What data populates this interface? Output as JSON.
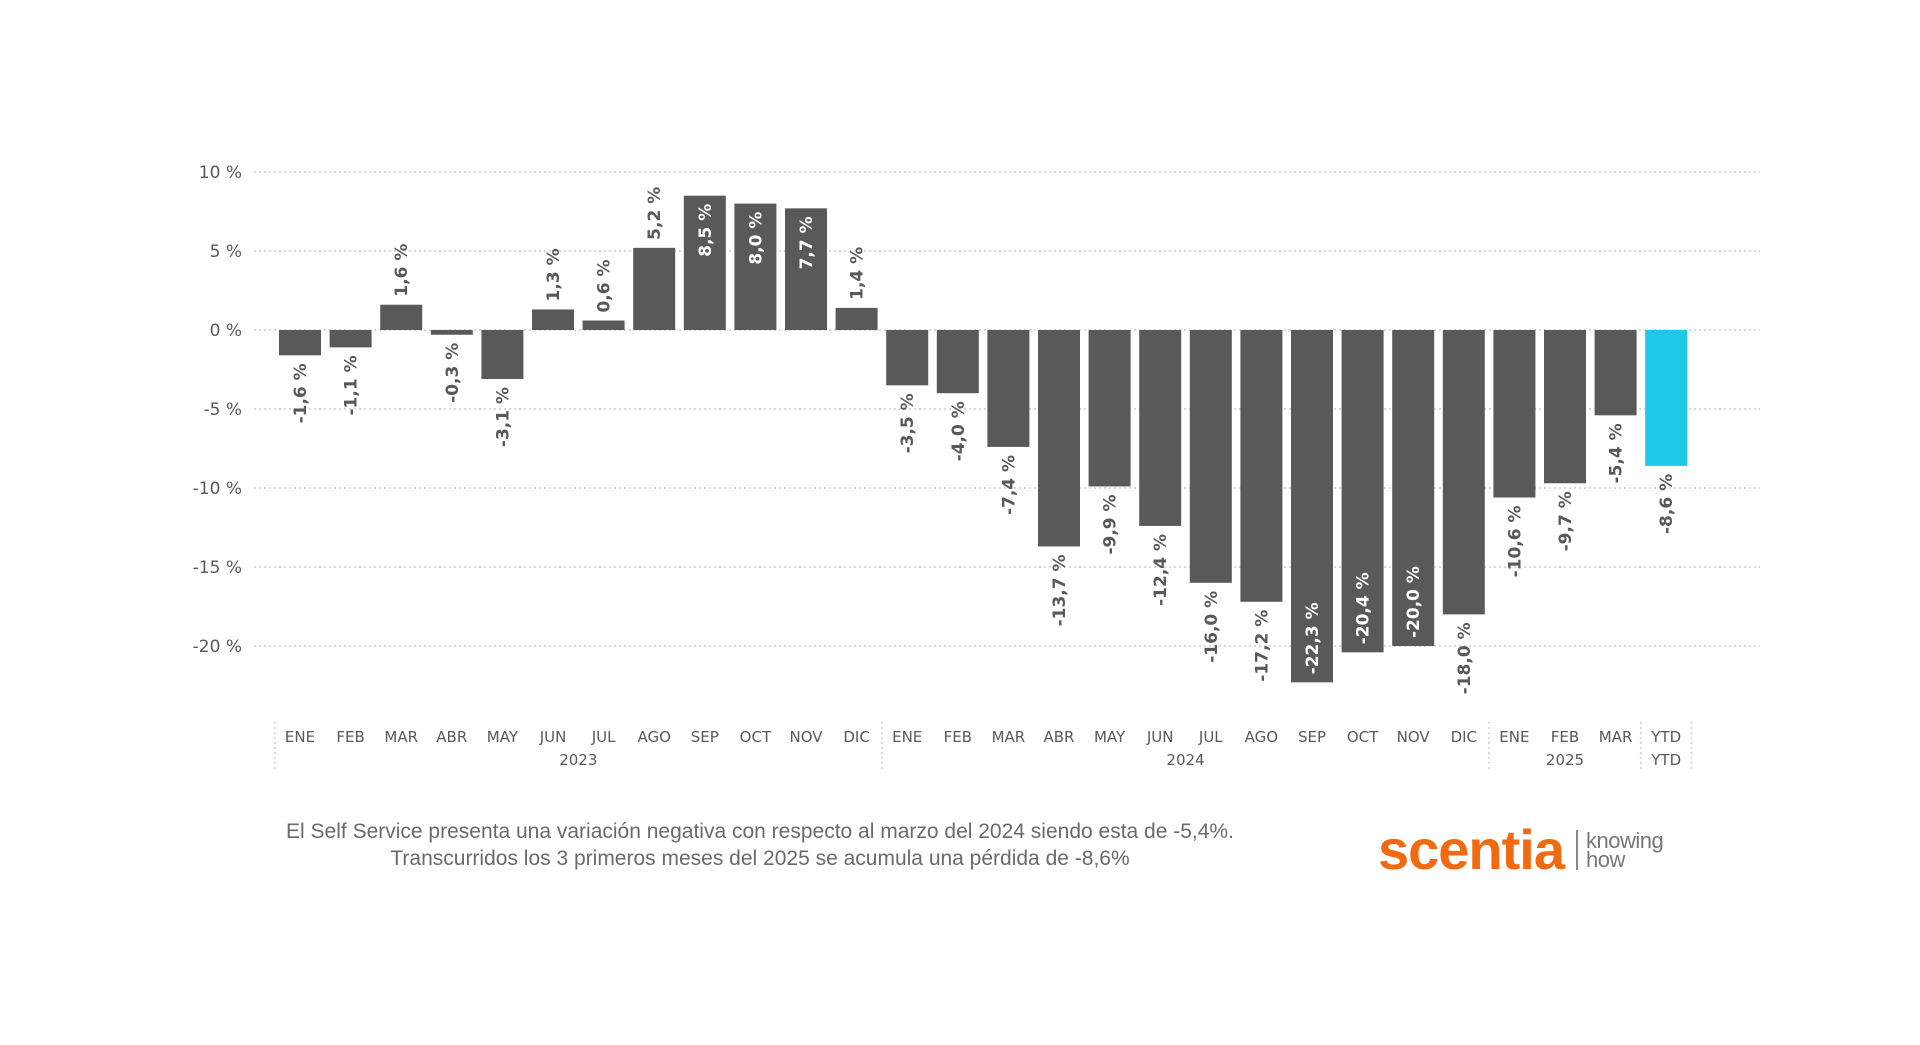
{
  "chart_data": {
    "type": "bar",
    "title": "",
    "xlabel": "",
    "ylabel": "",
    "ylim": [
      -22.3,
      10
    ],
    "yticks": [
      10,
      5,
      0,
      -5,
      -10,
      -15,
      -20
    ],
    "ytick_labels": [
      "10 %",
      "5 %",
      "0 %",
      "-5 %",
      "-10 %",
      "-15 %",
      "-20 %"
    ],
    "grid": true,
    "categories": [
      "ENE",
      "FEB",
      "MAR",
      "ABR",
      "MAY",
      "JUN",
      "JUL",
      "AGO",
      "SEP",
      "OCT",
      "NOV",
      "DIC",
      "ENE",
      "FEB",
      "MAR",
      "ABR",
      "MAY",
      "JUN",
      "JUL",
      "AGO",
      "SEP",
      "OCT",
      "NOV",
      "DIC",
      "ENE",
      "FEB",
      "MAR",
      "YTD"
    ],
    "category_sublabels": [
      "",
      "",
      "",
      "",
      "",
      "",
      "",
      "",
      "",
      "",
      "",
      "",
      "",
      "",
      "",
      "",
      "",
      "",
      "",
      "",
      "",
      "",
      "",
      "",
      "",
      "",
      "",
      "YTD"
    ],
    "groups": [
      {
        "label": "2023",
        "count": 12
      },
      {
        "label": "2024",
        "count": 12
      },
      {
        "label": "2025",
        "count": 3
      },
      {
        "label": "",
        "count": 1
      }
    ],
    "values": [
      -1.6,
      -1.1,
      1.6,
      -0.3,
      -3.1,
      1.3,
      0.6,
      5.2,
      8.5,
      8.0,
      7.7,
      1.4,
      -3.5,
      -4.0,
      -7.4,
      -13.7,
      -9.9,
      -12.4,
      -16.0,
      -17.2,
      -22.3,
      -20.4,
      -20.0,
      -18.0,
      -10.6,
      -9.7,
      -5.4,
      -8.6
    ],
    "data_labels": [
      "-1,6 %",
      "-1,1 %",
      "1,6 %",
      "-0,3 %",
      "-3,1 %",
      "1,3 %",
      "0,6 %",
      "5,2 %",
      "8,5 %",
      "8,0 %",
      "7,7 %",
      "1,4 %",
      "-3,5 %",
      "-4,0 %",
      "-7,4 %",
      "-13,7 %",
      "-9,9 %",
      "-12,4 %",
      "-16,0 %",
      "-17,2 %",
      "-22,3 %",
      "-20,4 %",
      "-20,0 %",
      "-18,0 %",
      "-10,6 %",
      "-9,7 %",
      "-5,4 %",
      "-8,6 %"
    ],
    "colors": {
      "bar": "#595959",
      "highlight": "#1ec8e8",
      "grid": "#d8d8d8",
      "text": "#595959"
    },
    "highlight_index": 27
  },
  "footer": {
    "line1": "El Self Service presenta una variación negativa con respecto al marzo del 2024 siendo esta de -5,4%.",
    "line2": "Transcurridos los 3 primeros meses del 2025 se acumula una pérdida de -8,6%"
  },
  "logo": {
    "name": "scentia",
    "tagline_1": "knowing",
    "tagline_2": "how"
  }
}
